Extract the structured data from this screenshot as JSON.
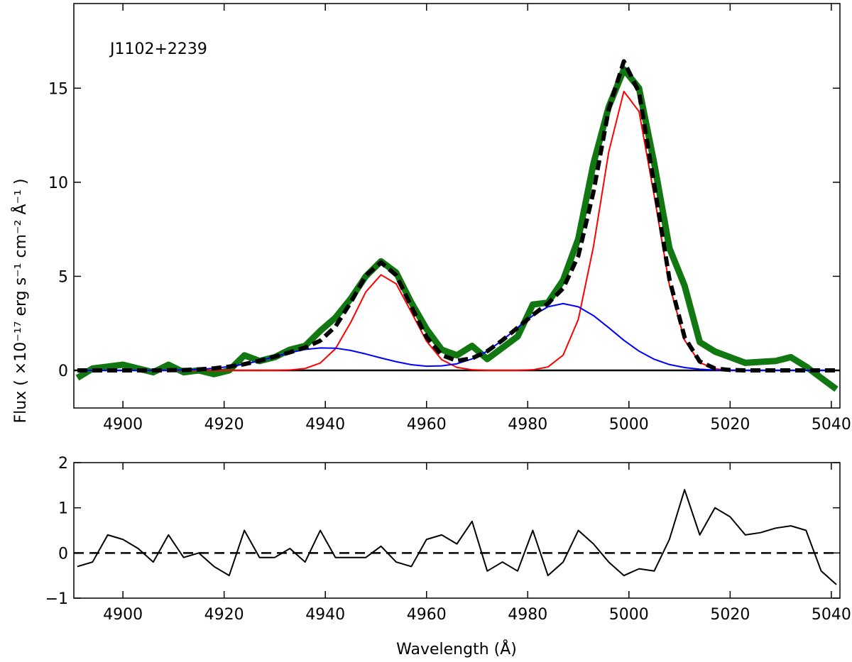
{
  "chart_data": [
    {
      "type": "line",
      "annotation": "J1102+2239",
      "ylabel": "Flux ( ×10⁻¹⁷ erg s⁻¹ cm⁻² Å⁻¹ )",
      "xlim": [
        4890.3,
        5041.7
      ],
      "ylim": [
        -2,
        19.5
      ],
      "xticks": [
        4900,
        4920,
        4940,
        4960,
        4980,
        5000,
        5020,
        5040
      ],
      "yticks": [
        0,
        5,
        10,
        15
      ],
      "hline": 0,
      "hline_dashed": false,
      "x": [
        4891,
        4894,
        4897,
        4900,
        4903,
        4906,
        4909,
        4912,
        4915,
        4918,
        4921,
        4924,
        4927,
        4930,
        4933,
        4936,
        4939,
        4942,
        4945,
        4948,
        4951,
        4954,
        4957,
        4960,
        4963,
        4966,
        4969,
        4972,
        4975,
        4978,
        4981,
        4984,
        4987,
        4990,
        4993,
        4996,
        4999,
        5002,
        5005,
        5008,
        5011,
        5014,
        5017,
        5020,
        5023,
        5026,
        5029,
        5032,
        5035,
        5038,
        5041
      ],
      "series": [
        {
          "color": "#117711",
          "width": 9,
          "dashed": false,
          "values": [
            -0.4,
            0.1,
            0.2,
            0.3,
            0.1,
            -0.1,
            0.3,
            -0.1,
            0.0,
            -0.2,
            0.0,
            0.8,
            0.5,
            0.7,
            1.1,
            1.3,
            2.1,
            2.8,
            3.8,
            5.0,
            5.8,
            5.2,
            3.6,
            2.2,
            1.1,
            0.8,
            1.3,
            0.6,
            1.2,
            1.8,
            3.5,
            3.6,
            4.8,
            7.0,
            11.0,
            14.0,
            16.0,
            15.0,
            11.0,
            6.5,
            4.5,
            1.5,
            1.0,
            0.7,
            0.4,
            0.45,
            0.5,
            0.7,
            0.2,
            -0.4,
            -1.0
          ]
        },
        {
          "color": "#ff0000",
          "width": 2,
          "dashed": false,
          "values": [
            0,
            0,
            0,
            0,
            0,
            0,
            0,
            0,
            0,
            0,
            0,
            0,
            0,
            0,
            0.02,
            0.1,
            0.39,
            1.15,
            2.54,
            4.17,
            5.08,
            4.6,
            3.09,
            1.55,
            0.57,
            0.16,
            0.03,
            0,
            0,
            0,
            0.03,
            0.18,
            0.81,
            2.71,
            6.59,
            11.6,
            14.83,
            13.76,
            9.27,
            4.54,
            1.61,
            0.41,
            0.08,
            0.01,
            0,
            0,
            0,
            0,
            0,
            0,
            0
          ]
        },
        {
          "color": "#0000ff",
          "width": 2,
          "dashed": false,
          "values": [
            0,
            0,
            0,
            0,
            0,
            0,
            0.01,
            0.02,
            0.05,
            0.11,
            0.2,
            0.33,
            0.51,
            0.73,
            0.94,
            1.11,
            1.19,
            1.18,
            1.06,
            0.87,
            0.66,
            0.46,
            0.3,
            0.22,
            0.24,
            0.35,
            0.61,
            1.02,
            1.6,
            2.27,
            2.91,
            3.38,
            3.55,
            3.38,
            2.91,
            2.27,
            1.6,
            1.02,
            0.59,
            0.31,
            0.15,
            0.06,
            0.02,
            0.01,
            0,
            0,
            0,
            0,
            0,
            0,
            0
          ]
        },
        {
          "color": "#000000",
          "width": 6,
          "dashed": true,
          "values": [
            0,
            0,
            0,
            0,
            0,
            0,
            0.01,
            0.02,
            0.05,
            0.11,
            0.2,
            0.33,
            0.51,
            0.73,
            0.96,
            1.21,
            1.58,
            2.33,
            3.6,
            5.04,
            5.74,
            5.06,
            3.39,
            1.77,
            0.81,
            0.51,
            0.64,
            1.02,
            1.6,
            2.27,
            2.94,
            3.56,
            4.36,
            6.09,
            9.5,
            13.87,
            16.43,
            14.78,
            9.86,
            4.85,
            1.76,
            0.47,
            0.1,
            0.02,
            0,
            0,
            0,
            0,
            0,
            0,
            0
          ]
        }
      ]
    },
    {
      "type": "line",
      "xlabel": "Wavelength (Å)",
      "xlim": [
        4890.3,
        5041.7
      ],
      "ylim": [
        -1,
        2
      ],
      "xticks": [
        4900,
        4920,
        4940,
        4960,
        4980,
        5000,
        5020,
        5040
      ],
      "yticks": [
        {
          "value": -1,
          "label": "−1"
        },
        0,
        1,
        2
      ],
      "hline": 0,
      "hline_dashed": true,
      "x": [
        4891,
        4894,
        4897,
        4900,
        4903,
        4906,
        4909,
        4912,
        4915,
        4918,
        4921,
        4924,
        4927,
        4930,
        4933,
        4936,
        4939,
        4942,
        4945,
        4948,
        4951,
        4954,
        4957,
        4960,
        4963,
        4966,
        4969,
        4972,
        4975,
        4978,
        4981,
        4984,
        4987,
        4990,
        4993,
        4996,
        4999,
        5002,
        5005,
        5008,
        5011,
        5014,
        5017,
        5020,
        5023,
        5026,
        5029,
        5032,
        5035,
        5038,
        5041
      ],
      "series": [
        {
          "color": "#000000",
          "width": 2,
          "dashed": false,
          "values": [
            -0.3,
            -0.2,
            0.4,
            0.3,
            0.1,
            -0.2,
            0.4,
            -0.1,
            0.0,
            -0.3,
            -0.5,
            0.5,
            -0.1,
            -0.1,
            0.1,
            -0.2,
            0.5,
            -0.1,
            -0.1,
            -0.1,
            0.15,
            -0.2,
            -0.3,
            0.3,
            0.4,
            0.2,
            0.7,
            -0.4,
            -0.2,
            -0.4,
            0.5,
            -0.5,
            -0.2,
            0.5,
            0.2,
            -0.2,
            -0.5,
            -0.35,
            -0.4,
            0.3,
            1.4,
            0.4,
            1.0,
            0.8,
            0.4,
            0.45,
            0.55,
            0.6,
            0.5,
            -0.4,
            -0.7
          ]
        }
      ]
    }
  ]
}
